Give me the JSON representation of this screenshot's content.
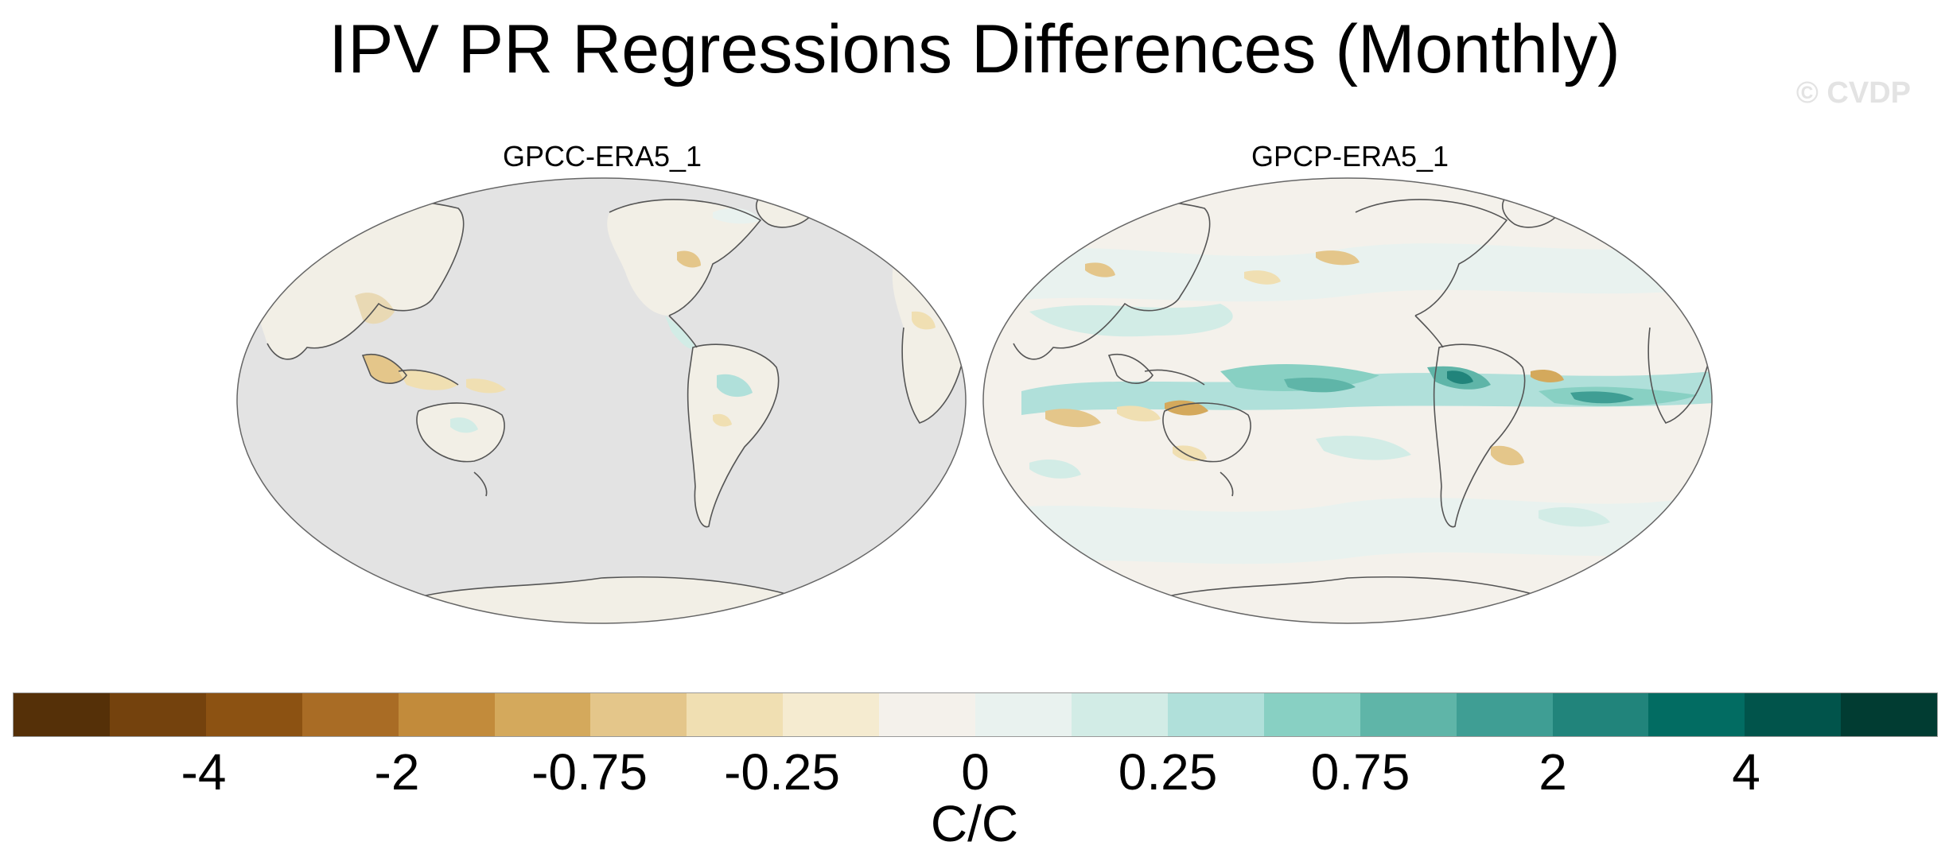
{
  "title": "IPV PR Regressions Differences (Monthly)",
  "watermark": "© CVDP",
  "panels": [
    {
      "name": "GPCC-ERA5_1"
    },
    {
      "name": "GPCP-ERA5_1"
    }
  ],
  "colorbar": {
    "colors": [
      "#553008",
      "#74420d",
      "#8c5212",
      "#a96c25",
      "#c28b3b",
      "#d4a95c",
      "#e4c68a",
      "#f0dfb2",
      "#f5ebd0",
      "#f4f1eb",
      "#e9f2ef",
      "#d2ece6",
      "#b0e0da",
      "#88d0c3",
      "#5fb5a8",
      "#3f9e94",
      "#21847b",
      "#026c62",
      "#01544b",
      "#013c32"
    ],
    "tick_labels": [
      "-4",
      "-2",
      "-0.75",
      "-0.25",
      "0",
      "0.25",
      "0.75",
      "2",
      "4"
    ],
    "unit": "C/C"
  }
}
